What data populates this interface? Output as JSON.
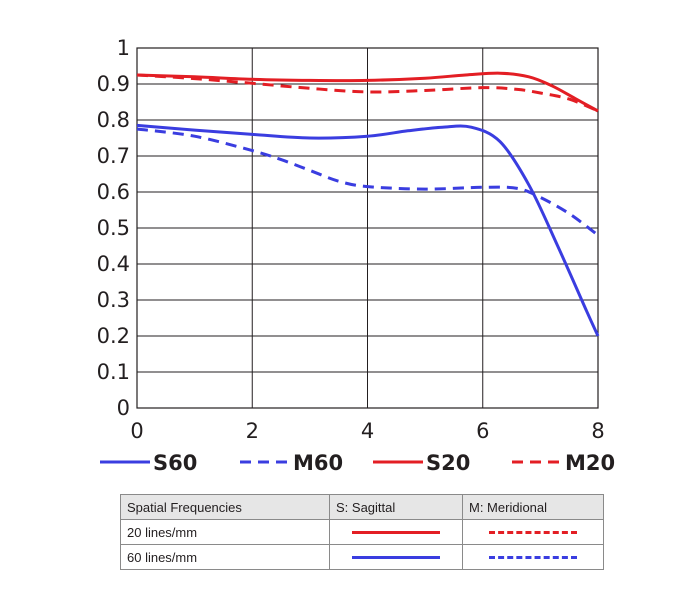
{
  "colors": {
    "red": "#e31e24",
    "blue": "#3a3de0",
    "grid": "#231f20"
  },
  "chart_data": {
    "type": "line",
    "xlim": [
      0,
      8
    ],
    "ylim": [
      0,
      1
    ],
    "xticks": [
      "0",
      "2",
      "4",
      "6",
      "8"
    ],
    "yticks": [
      "0",
      "0.1",
      "0.2",
      "0.3",
      "0.4",
      "0.5",
      "0.6",
      "0.7",
      "0.8",
      "0.9",
      "1"
    ],
    "grid": true,
    "legend_position": "bottom",
    "series": [
      {
        "name": "S60",
        "color": "#3a3de0",
        "style": "solid",
        "x": [
          0,
          1,
          2,
          3,
          4,
          4.7,
          5.3,
          5.8,
          6.3,
          6.8,
          7.3,
          7.8,
          8
        ],
        "y": [
          0.785,
          0.772,
          0.76,
          0.75,
          0.755,
          0.77,
          0.78,
          0.78,
          0.74,
          0.62,
          0.45,
          0.27,
          0.2
        ]
      },
      {
        "name": "M60",
        "color": "#3a3de0",
        "style": "dashed",
        "x": [
          0,
          1,
          2,
          2.5,
          3,
          3.5,
          4,
          5,
          6,
          6.6,
          7,
          7.5,
          8
        ],
        "y": [
          0.775,
          0.755,
          0.715,
          0.69,
          0.66,
          0.63,
          0.615,
          0.608,
          0.613,
          0.61,
          0.585,
          0.54,
          0.48
        ]
      },
      {
        "name": "S20",
        "color": "#e31e24",
        "style": "solid",
        "x": [
          0,
          1,
          2,
          3,
          4,
          5,
          5.7,
          6.3,
          6.8,
          7.2,
          7.6,
          8
        ],
        "y": [
          0.925,
          0.92,
          0.913,
          0.91,
          0.91,
          0.916,
          0.925,
          0.93,
          0.92,
          0.895,
          0.86,
          0.825
        ]
      },
      {
        "name": "M20",
        "color": "#e31e24",
        "style": "dashed",
        "x": [
          0,
          1,
          2,
          3,
          4,
          5,
          6,
          6.6,
          7,
          7.5,
          8
        ],
        "y": [
          0.925,
          0.915,
          0.902,
          0.888,
          0.878,
          0.882,
          0.89,
          0.885,
          0.875,
          0.858,
          0.825
        ]
      }
    ]
  },
  "table": {
    "header": [
      "Spatial Frequencies",
      "S: Sagittal",
      "M: Meridional"
    ],
    "rows": [
      {
        "label": "20 lines/mm",
        "color": "#e31e24"
      },
      {
        "label": "60 lines/mm",
        "color": "#3a3de0"
      }
    ]
  }
}
